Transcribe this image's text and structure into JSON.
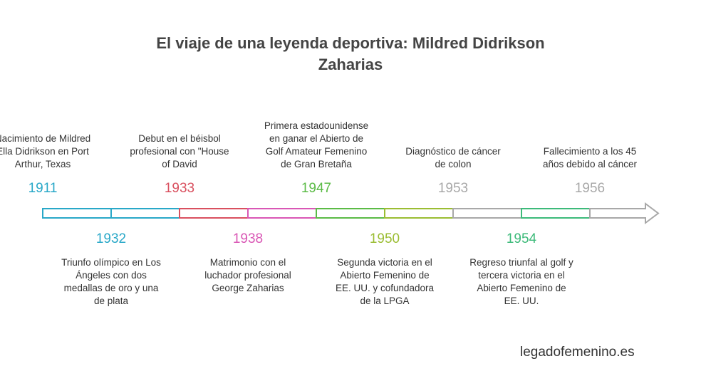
{
  "title": "El viaje de una leyenda deportiva: Mildred Didrikson Zaharias",
  "footer": "legadofemenino.es",
  "events": [
    {
      "year": "1911",
      "color": "#29a8c8",
      "position": "top",
      "text": "Nacimiento de Mildred Ella Didrikson en Port Arthur, Texas"
    },
    {
      "year": "1932",
      "color": "#29a8c8",
      "position": "bottom",
      "text": "Triunfo olímpico en Los Ángeles con dos medallas de oro y una de plata"
    },
    {
      "year": "1933",
      "color": "#d9505f",
      "position": "top",
      "text": "Debut en el béisbol profesional con \"House of David"
    },
    {
      "year": "1938",
      "color": "#d957b5",
      "position": "bottom",
      "text": "Matrimonio con el luchador profesional George Zaharias"
    },
    {
      "year": "1947",
      "color": "#5bbb46",
      "position": "top",
      "text": "Primera estadounidense en ganar el Abierto de Golf Amateur Femenino de Gran Bretaña"
    },
    {
      "year": "1950",
      "color": "#9bbd33",
      "position": "bottom",
      "text": "Segunda victoria en el Abierto Femenino de EE. UU. y cofundadora de la LPGA"
    },
    {
      "year": "1953",
      "color": "#a8a8a8",
      "position": "top",
      "text": "Diagnóstico de cáncer de colon"
    },
    {
      "year": "1954",
      "color": "#3dba7a",
      "position": "bottom",
      "text": "Regreso triunfal al golf y tercera victoria en el Abierto Femenino de EE. UU."
    },
    {
      "year": "1956",
      "color": "#a8a8a8",
      "position": "top",
      "text": "Fallecimiento a los 45 años debido al cáncer"
    }
  ]
}
